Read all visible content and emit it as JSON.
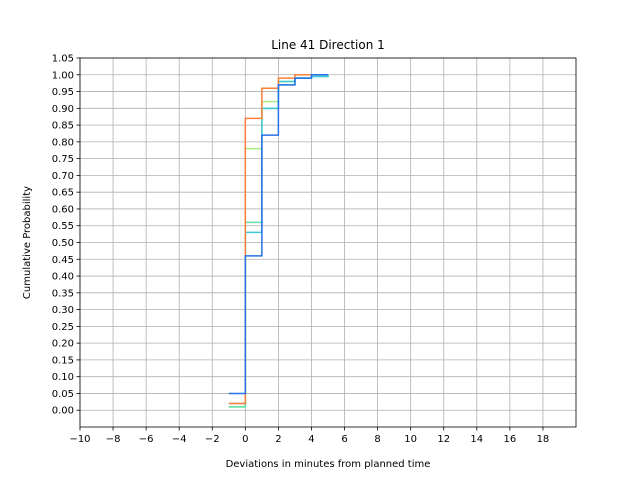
{
  "chart_data": {
    "type": "line",
    "title": "Line 41 Direction 1",
    "xlabel": "Deviations in minutes from planned time",
    "ylabel": "Cumulative Probability",
    "xlim": [
      -10,
      20
    ],
    "ylim": [
      -0.05,
      1.05
    ],
    "xticks": [
      -10,
      -8,
      -6,
      -4,
      -2,
      0,
      2,
      4,
      6,
      8,
      10,
      12,
      14,
      16,
      18
    ],
    "yticks": [
      0.0,
      0.05,
      0.1,
      0.15,
      0.2,
      0.25,
      0.3,
      0.35,
      0.4,
      0.45,
      0.5,
      0.55,
      0.6,
      0.65,
      0.7,
      0.75,
      0.8,
      0.85,
      0.9,
      0.95,
      1.0,
      1.05
    ],
    "grid": true,
    "step": "post",
    "series": [
      {
        "color": "#a8f080",
        "x": [
          -1,
          0,
          1,
          2,
          3,
          4,
          5
        ],
        "y": [
          0.01,
          0.78,
          0.92,
          0.98,
          0.99,
          1.0,
          1.0
        ]
      },
      {
        "color": "#60e0a8",
        "x": [
          -1,
          0,
          1,
          2,
          3,
          4,
          5
        ],
        "y": [
          0.01,
          0.56,
          0.9,
          0.97,
          0.99,
          0.995,
          1.0
        ]
      },
      {
        "color": "#40c8d8",
        "x": [
          -1,
          0,
          1,
          2,
          3,
          4,
          5
        ],
        "y": [
          0.02,
          0.53,
          0.9,
          0.98,
          0.99,
          0.995,
          1.0
        ]
      },
      {
        "color": "#ff7f3a",
        "x": [
          -1,
          0,
          1,
          2,
          3,
          4,
          5
        ],
        "y": [
          0.02,
          0.87,
          0.96,
          0.99,
          1.0,
          1.0,
          1.0
        ]
      },
      {
        "color": "#2a70e8",
        "x": [
          -1,
          0,
          1,
          2,
          3,
          4,
          5
        ],
        "y": [
          0.05,
          0.46,
          0.82,
          0.97,
          0.99,
          1.0,
          1.0
        ]
      }
    ]
  }
}
